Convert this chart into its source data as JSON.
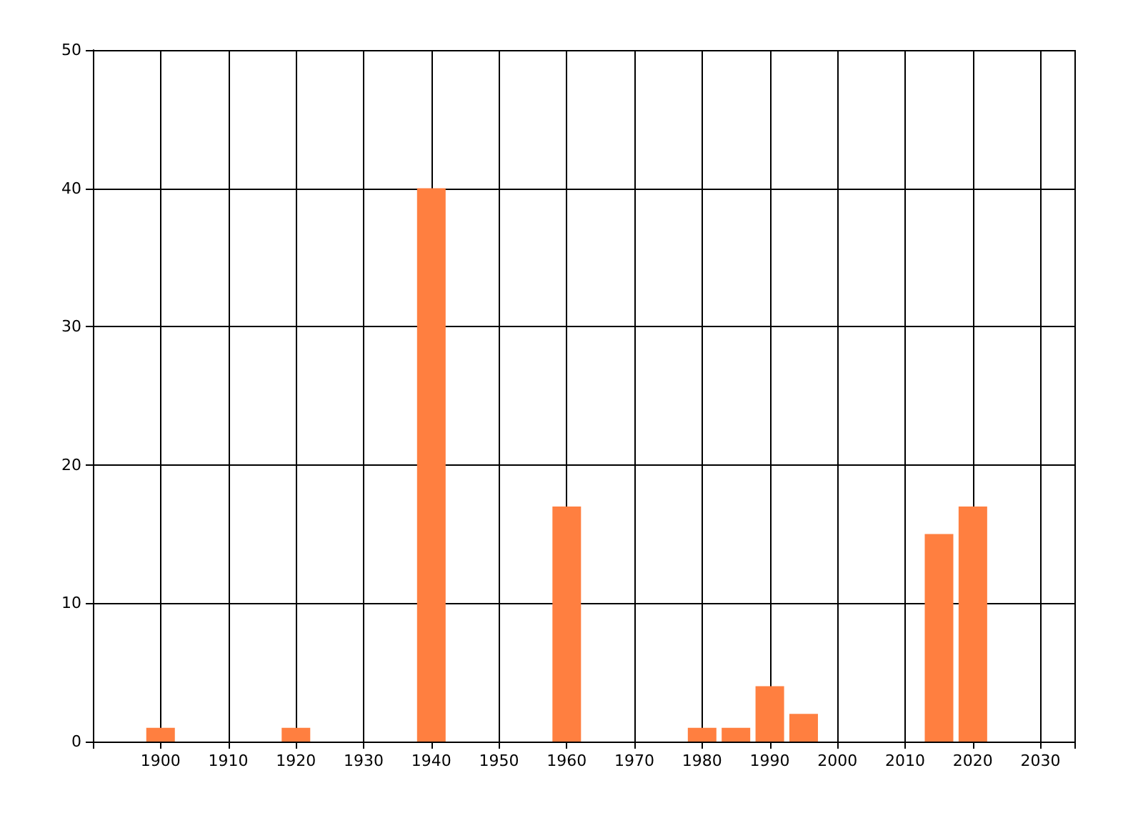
{
  "chart_data": {
    "type": "bar",
    "x": [
      1900,
      1920,
      1940,
      1960,
      1980,
      1985,
      1990,
      1995,
      2015,
      2020
    ],
    "values": [
      1,
      1,
      40,
      17,
      1,
      1,
      4,
      2,
      15,
      17
    ],
    "color": "#ff7f40",
    "xlim": [
      1890,
      2035
    ],
    "xticks": [
      1900,
      1910,
      1920,
      1930,
      1940,
      1950,
      1960,
      1970,
      1980,
      1990,
      2000,
      2010,
      2020,
      2030
    ],
    "ylim": [
      0,
      50
    ],
    "yticks": [
      0,
      10,
      20,
      30,
      40,
      50
    ],
    "grid": true
  }
}
